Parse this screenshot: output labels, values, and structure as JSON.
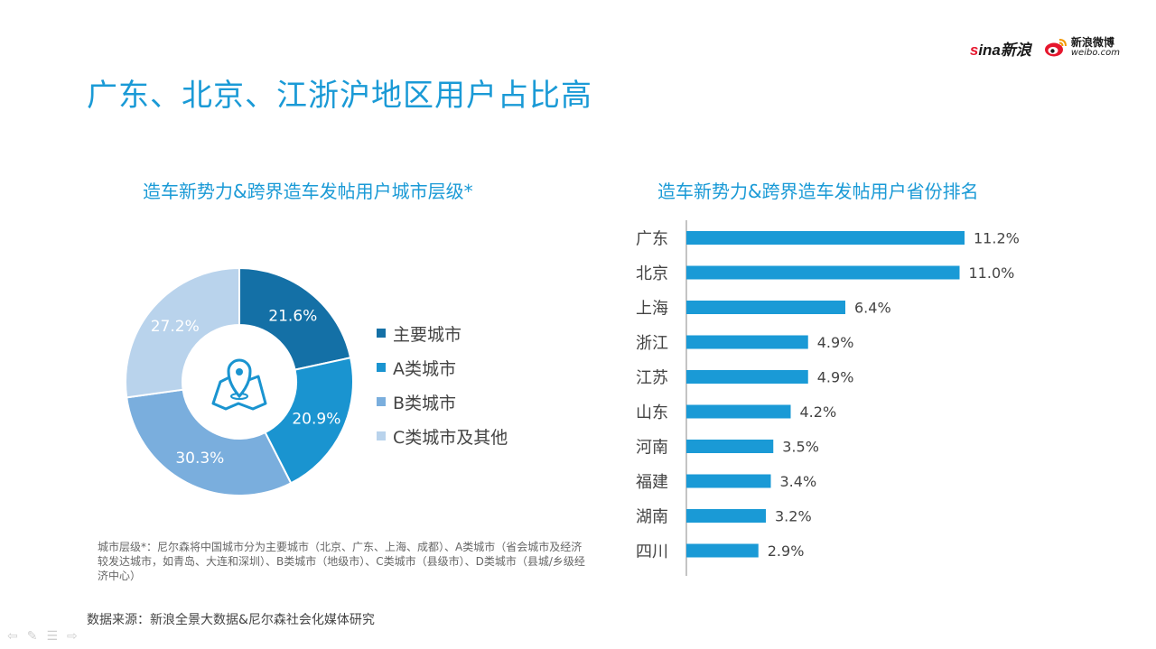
{
  "branding": {
    "sina_label": "新浪",
    "weibo_label": "新浪微博",
    "weibo_url_text": "weibo.com"
  },
  "title": "广东、北京、江浙沪地区用户占比高",
  "donut": {
    "title": "造车新势力&跨界造车发帖用户城市层级*",
    "colors": [
      "#1470a6",
      "#1a94d0",
      "#7aaedd",
      "#b9d3ec"
    ],
    "legend": [
      "主要城市",
      "A类城市",
      "B类城市",
      "C类城市及其他"
    ]
  },
  "bars": {
    "title": "造车新势力&跨界造车发帖用户省份排名",
    "color": "#1a9ad6"
  },
  "chart_data": [
    {
      "type": "pie",
      "title": "造车新势力&跨界造车发帖用户城市层级*",
      "categories": [
        "主要城市",
        "A类城市",
        "B类城市",
        "C类城市及其他"
      ],
      "values": [
        21.6,
        20.9,
        30.3,
        27.2
      ],
      "labels": [
        "21.6%",
        "20.9%",
        "30.3%",
        "27.2%"
      ],
      "legend_position": "right"
    },
    {
      "type": "bar",
      "orientation": "horizontal",
      "title": "造车新势力&跨界造车发帖用户省份排名",
      "categories": [
        "广东",
        "北京",
        "上海",
        "浙江",
        "江苏",
        "山东",
        "河南",
        "福建",
        "湖南",
        "四川"
      ],
      "values": [
        11.2,
        11.0,
        6.4,
        4.9,
        4.9,
        4.2,
        3.5,
        3.4,
        3.2,
        2.9
      ],
      "labels": [
        "11.2%",
        "11.0%",
        "6.4%",
        "4.9%",
        "4.9%",
        "4.2%",
        "3.5%",
        "3.4%",
        "3.2%",
        "2.9%"
      ],
      "grid": false
    }
  ],
  "footnote": "城市层级*：尼尔森将中国城市分为主要城市（北京、广东、上海、成都）、A类城市（省会城市及经济较发达城市，如青岛、大连和深圳）、B类城市（地级市）、C类城市（县级市）、D类城市（县城/乡级经济中心）",
  "source": "数据来源：新浪全景大数据&尼尔森社会化媒体研究"
}
